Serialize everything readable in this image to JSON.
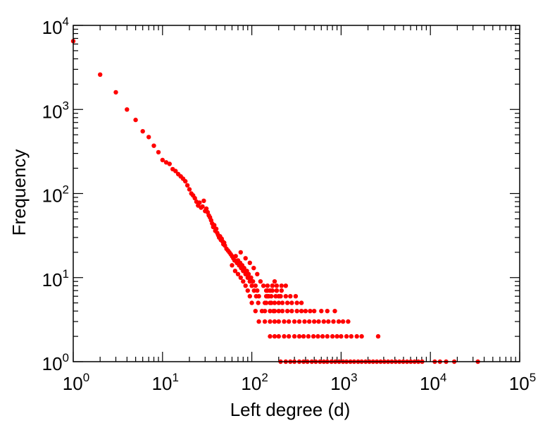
{
  "chart_data": {
    "type": "scatter",
    "title": "",
    "xlabel": "Left degree (d)",
    "ylabel": "Frequency",
    "xscale": "log",
    "yscale": "log",
    "xlim": [
      1,
      100000
    ],
    "ylim": [
      1,
      10000
    ],
    "x_ticks": [
      {
        "base": "10",
        "exp": "0",
        "value": 1
      },
      {
        "base": "10",
        "exp": "1",
        "value": 10
      },
      {
        "base": "10",
        "exp": "2",
        "value": 100
      },
      {
        "base": "10",
        "exp": "3",
        "value": 1000
      },
      {
        "base": "10",
        "exp": "4",
        "value": 10000
      },
      {
        "base": "10",
        "exp": "5",
        "value": 100000
      }
    ],
    "y_ticks": [
      {
        "base": "10",
        "exp": "0",
        "value": 1
      },
      {
        "base": "10",
        "exp": "1",
        "value": 10
      },
      {
        "base": "10",
        "exp": "2",
        "value": 100
      },
      {
        "base": "10",
        "exp": "3",
        "value": 1000
      },
      {
        "base": "10",
        "exp": "4",
        "value": 10000
      }
    ],
    "grid": false,
    "legend": "none",
    "marker_color": "#ff0000",
    "series": [
      {
        "points": [
          [
            1,
            6500
          ],
          [
            2,
            2600
          ],
          [
            3,
            1600
          ],
          [
            4,
            1000
          ],
          [
            5,
            750
          ],
          [
            6,
            550
          ],
          [
            7,
            470
          ],
          [
            8,
            370
          ],
          [
            9,
            310
          ],
          [
            10,
            250
          ],
          [
            11,
            235
          ],
          [
            12,
            225
          ],
          [
            13,
            195
          ],
          [
            14,
            185
          ],
          [
            15,
            170
          ],
          [
            16,
            160
          ],
          [
            17,
            150
          ],
          [
            18,
            140
          ],
          [
            19,
            125
          ],
          [
            20,
            112
          ],
          [
            21,
            100
          ],
          [
            22,
            95
          ],
          [
            23,
            88
          ],
          [
            24,
            80
          ],
          [
            25,
            72
          ],
          [
            26,
            78
          ],
          [
            27,
            68
          ],
          [
            28,
            70
          ],
          [
            29,
            82
          ],
          [
            30,
            62
          ],
          [
            31,
            66
          ],
          [
            32,
            60
          ],
          [
            33,
            55
          ],
          [
            34,
            52
          ],
          [
            35,
            48
          ],
          [
            36,
            44
          ],
          [
            37,
            40
          ],
          [
            38,
            42
          ],
          [
            39,
            36
          ],
          [
            40,
            38
          ],
          [
            41,
            34
          ],
          [
            42,
            32
          ],
          [
            43,
            30
          ],
          [
            44,
            31
          ],
          [
            45,
            28
          ],
          [
            46,
            29
          ],
          [
            47,
            27
          ],
          [
            48,
            25
          ],
          [
            49,
            26
          ],
          [
            50,
            24
          ],
          [
            52,
            22
          ],
          [
            54,
            21
          ],
          [
            56,
            20
          ],
          [
            58,
            19
          ],
          [
            60,
            18
          ],
          [
            62,
            17
          ],
          [
            64,
            16
          ],
          [
            66,
            18
          ],
          [
            68,
            15
          ],
          [
            70,
            16
          ],
          [
            72,
            14
          ],
          [
            74,
            15
          ],
          [
            76,
            13
          ],
          [
            78,
            14
          ],
          [
            80,
            12
          ],
          [
            82,
            13
          ],
          [
            85,
            11
          ],
          [
            88,
            12
          ],
          [
            90,
            10
          ],
          [
            92,
            11
          ],
          [
            95,
            9
          ],
          [
            98,
            10
          ],
          [
            100,
            8
          ],
          [
            103,
            9
          ],
          [
            106,
            7
          ],
          [
            110,
            8
          ],
          [
            112,
            6
          ],
          [
            115,
            7
          ],
          [
            118,
            5
          ],
          [
            120,
            6
          ],
          [
            60,
            14
          ],
          [
            65,
            12
          ],
          [
            70,
            11
          ],
          [
            75,
            10
          ],
          [
            80,
            9
          ],
          [
            85,
            8
          ],
          [
            90,
            7
          ],
          [
            95,
            6
          ],
          [
            100,
            5
          ],
          [
            110,
            4
          ],
          [
            120,
            3
          ],
          [
            130,
            4
          ],
          [
            140,
            5
          ],
          [
            150,
            6
          ],
          [
            160,
            7
          ],
          [
            170,
            8
          ],
          [
            180,
            9
          ],
          [
            190,
            7
          ],
          [
            200,
            6
          ],
          [
            75,
            20
          ],
          [
            85,
            17
          ],
          [
            95,
            15
          ],
          [
            105,
            13
          ],
          [
            115,
            11
          ],
          [
            125,
            9
          ],
          [
            135,
            8
          ],
          [
            145,
            7
          ],
          [
            155,
            6
          ],
          [
            165,
            5
          ],
          [
            175,
            4
          ],
          [
            140,
            4
          ],
          [
            160,
            4
          ],
          [
            180,
            4
          ],
          [
            200,
            4
          ],
          [
            220,
            4
          ],
          [
            250,
            4
          ],
          [
            280,
            4
          ],
          [
            320,
            4
          ],
          [
            360,
            4
          ],
          [
            400,
            4
          ],
          [
            450,
            4
          ],
          [
            500,
            4
          ],
          [
            600,
            4
          ],
          [
            700,
            4
          ],
          [
            850,
            4
          ],
          [
            140,
            3
          ],
          [
            160,
            3
          ],
          [
            180,
            3
          ],
          [
            200,
            3
          ],
          [
            230,
            3
          ],
          [
            260,
            3
          ],
          [
            300,
            3
          ],
          [
            340,
            3
          ],
          [
            390,
            3
          ],
          [
            440,
            3
          ],
          [
            500,
            3
          ],
          [
            560,
            3
          ],
          [
            640,
            3
          ],
          [
            720,
            3
          ],
          [
            820,
            3
          ],
          [
            940,
            3
          ],
          [
            1050,
            3
          ],
          [
            1200,
            3
          ],
          [
            160,
            2
          ],
          [
            180,
            2
          ],
          [
            200,
            2
          ],
          [
            230,
            2
          ],
          [
            260,
            2
          ],
          [
            300,
            2
          ],
          [
            340,
            2
          ],
          [
            380,
            2
          ],
          [
            430,
            2
          ],
          [
            490,
            2
          ],
          [
            550,
            2
          ],
          [
            620,
            2
          ],
          [
            700,
            2
          ],
          [
            800,
            2
          ],
          [
            900,
            2
          ],
          [
            1000,
            2
          ],
          [
            1150,
            2
          ],
          [
            1300,
            2
          ],
          [
            1500,
            2
          ],
          [
            1700,
            2
          ],
          [
            2600,
            2
          ],
          [
            145,
            5
          ],
          [
            160,
            5
          ],
          [
            180,
            5
          ],
          [
            200,
            5
          ],
          [
            220,
            5
          ],
          [
            250,
            5
          ],
          [
            280,
            5
          ],
          [
            320,
            5
          ],
          [
            360,
            5
          ],
          [
            145,
            6
          ],
          [
            165,
            6
          ],
          [
            185,
            6
          ],
          [
            210,
            6
          ],
          [
            240,
            6
          ],
          [
            270,
            6
          ],
          [
            310,
            6
          ],
          [
            150,
            7
          ],
          [
            170,
            7
          ],
          [
            190,
            7
          ],
          [
            215,
            7
          ],
          [
            150,
            8
          ],
          [
            170,
            8
          ],
          [
            190,
            8
          ],
          [
            215,
            8
          ],
          [
            240,
            8
          ],
          [
            210,
            1
          ],
          [
            240,
            1
          ],
          [
            270,
            1
          ],
          [
            300,
            1
          ],
          [
            340,
            1
          ],
          [
            380,
            1
          ],
          [
            420,
            1
          ],
          [
            470,
            1
          ],
          [
            520,
            1
          ],
          [
            580,
            1
          ],
          [
            640,
            1
          ],
          [
            700,
            1
          ],
          [
            780,
            1
          ],
          [
            860,
            1
          ],
          [
            950,
            1
          ],
          [
            1050,
            1
          ],
          [
            1150,
            1
          ],
          [
            1270,
            1
          ],
          [
            1400,
            1
          ],
          [
            1550,
            1
          ],
          [
            1700,
            1
          ],
          [
            1880,
            1
          ],
          [
            2070,
            1
          ],
          [
            2280,
            1
          ],
          [
            2510,
            1
          ],
          [
            2770,
            1
          ],
          [
            3050,
            1
          ],
          [
            3360,
            1
          ],
          [
            3700,
            1
          ],
          [
            4080,
            1
          ],
          [
            4500,
            1
          ],
          [
            4960,
            1
          ],
          [
            5470,
            1
          ],
          [
            6030,
            1
          ],
          [
            6650,
            1
          ],
          [
            7330,
            1
          ],
          [
            8080,
            1
          ],
          [
            11200,
            1
          ],
          [
            12800,
            1
          ],
          [
            15000,
            1
          ],
          [
            18500,
            1
          ],
          [
            34000,
            1
          ]
        ]
      }
    ]
  }
}
